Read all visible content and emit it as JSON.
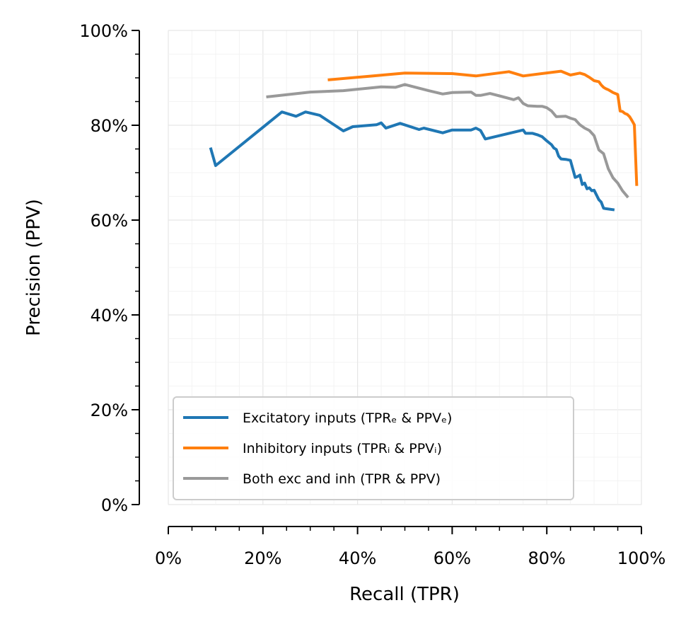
{
  "chart_data": {
    "type": "line",
    "xlabel": "Recall (TPR)",
    "ylabel": "Precision (PPV)",
    "xlim": [
      0,
      100
    ],
    "ylim": [
      0,
      100
    ],
    "xticks": [
      "0%",
      "20%",
      "40%",
      "60%",
      "80%",
      "100%"
    ],
    "yticks": [
      "0%",
      "20%",
      "40%",
      "60%",
      "80%",
      "100%"
    ],
    "grid": true,
    "legend_position": "lower-left",
    "series": [
      {
        "name": "Excitatory inputs (TPRₑ & PPVₑ)",
        "color": "#1f77b4",
        "x": [
          9,
          10,
          24,
          27,
          29,
          32,
          37,
          39,
          44,
          45,
          46,
          49,
          53,
          54,
          58,
          60,
          64,
          65,
          66,
          67,
          75,
          75.5,
          77,
          78,
          79,
          80,
          81,
          81.5,
          82,
          82.5,
          83,
          84,
          85,
          86,
          86.5,
          87,
          87.5,
          88,
          88.5,
          89,
          89.5,
          90,
          91,
          91.5,
          92,
          92.5,
          94
        ],
        "y": [
          75,
          71.5,
          82.8,
          81.9,
          82.8,
          82.1,
          78.8,
          79.7,
          80.1,
          80.5,
          79.4,
          80.4,
          79.1,
          79.4,
          78.4,
          79.0,
          79.0,
          79.4,
          78.9,
          77.1,
          79.0,
          78.3,
          78.3,
          78.0,
          77.6,
          76.7,
          75.9,
          75.2,
          74.9,
          73.5,
          72.9,
          72.8,
          72.6,
          69.0,
          69.2,
          69.5,
          67.5,
          67.8,
          66.6,
          66.8,
          66.2,
          66.3,
          64.3,
          63.8,
          62.5,
          62.4,
          62.2
        ]
      },
      {
        "name": "Inhibitory inputs (TPRᵢ & PPVᵢ)",
        "color": "#ff7f0e",
        "x": [
          34,
          50,
          60,
          65,
          72,
          75,
          83,
          85,
          87,
          88,
          89,
          90,
          91,
          91.5,
          92,
          92.5,
          93,
          94,
          95,
          95.5,
          96,
          96.5,
          97,
          97.5,
          98,
          98.5,
          99
        ],
        "y": [
          89.6,
          91.0,
          90.9,
          90.4,
          91.3,
          90.4,
          91.4,
          90.6,
          91.0,
          90.7,
          90.1,
          89.4,
          89.2,
          88.5,
          88.0,
          87.7,
          87.5,
          86.9,
          86.5,
          83.0,
          82.9,
          82.5,
          82.3,
          81.8,
          81.0,
          80.1,
          67.5
        ]
      },
      {
        "name": "Both exc and inh (TPR & PPV)",
        "color": "#999999",
        "x": [
          21,
          30,
          37,
          45,
          48,
          50,
          55,
          58,
          60,
          64,
          65,
          66,
          68,
          70,
          73,
          74,
          75,
          76,
          78,
          79,
          80,
          81,
          82,
          84,
          85,
          86,
          87,
          88,
          89,
          90,
          91,
          92,
          93,
          94,
          95,
          96,
          97
        ],
        "y": [
          86.0,
          87.0,
          87.3,
          88.1,
          88.0,
          88.6,
          87.3,
          86.6,
          86.9,
          87.0,
          86.3,
          86.3,
          86.7,
          86.2,
          85.4,
          85.8,
          84.6,
          84.1,
          84.0,
          84.0,
          83.7,
          83.0,
          81.8,
          81.9,
          81.5,
          81.2,
          80.1,
          79.4,
          78.9,
          77.8,
          74.8,
          74.0,
          70.8,
          68.9,
          67.8,
          66.2,
          65.0
        ]
      }
    ]
  }
}
